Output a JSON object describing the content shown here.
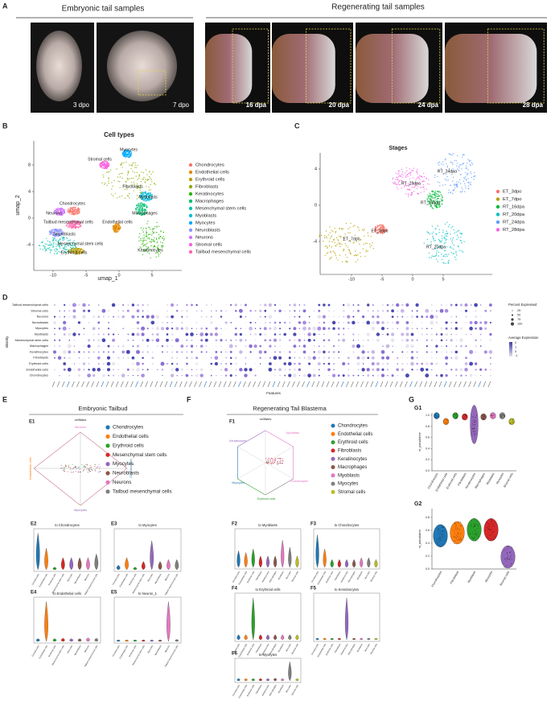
{
  "panelA": {
    "letter": "A",
    "embryonic": {
      "title": "Embryonic tail samples",
      "labels": [
        "3 dpo",
        "7 dpo"
      ]
    },
    "regenerating": {
      "title": "Regenerating tail samples",
      "labels": [
        "16 dpa",
        "20 dpa",
        "24 dpa",
        "28 dpa"
      ]
    }
  },
  "panelB": {
    "letter": "B",
    "title": "Cell types",
    "xlabel": "umap_1",
    "ylabel": "umap_2",
    "xticks": [
      "-10",
      "-5",
      "0",
      "5"
    ],
    "yticks": [
      "-4",
      "0",
      "4",
      "8"
    ],
    "legend": [
      {
        "name": "Chondrocytes",
        "color": "#F8766D"
      },
      {
        "name": "Endothelial cells",
        "color": "#E18A00"
      },
      {
        "name": "Erythroid cells",
        "color": "#BE9C00"
      },
      {
        "name": "Fibroblasts",
        "color": "#8CAB00"
      },
      {
        "name": "Keratinocytes",
        "color": "#24B700"
      },
      {
        "name": "Macrophages",
        "color": "#00BE70"
      },
      {
        "name": "Mesenchymal stem cells",
        "color": "#00C1AB"
      },
      {
        "name": "Myoblasts",
        "color": "#00BBDA"
      },
      {
        "name": "Myocytes",
        "color": "#00ACFC"
      },
      {
        "name": "Neuroblasts",
        "color": "#8B93FF"
      },
      {
        "name": "Neurons",
        "color": "#D575FE"
      },
      {
        "name": "Stromal cells",
        "color": "#F962DD"
      },
      {
        "name": "Tailbud mesenchymal cells",
        "color": "#FF65AC"
      }
    ],
    "cluster_labels": [
      "Myocytes",
      "Stromal cells",
      "Fibroblasts",
      "Myoblasts",
      "Chondrocytes",
      "Macrophages",
      "Endothelial cells",
      "Neurons",
      "Tailbud mesenchymal cells",
      "Neuroblasts",
      "Mesenchymal stem cells",
      "Erythroid cells",
      "Keratinocytes"
    ]
  },
  "panelC": {
    "letter": "C",
    "title": "Stages",
    "xticks": [
      "-10",
      "-5",
      "0",
      "5"
    ],
    "yticks": [
      "-4",
      "0",
      "4"
    ],
    "legend": [
      {
        "name": "ET_3dpo",
        "color": "#F8766D"
      },
      {
        "name": "ET_7dpo",
        "color": "#B79F00"
      },
      {
        "name": "RT_16dpa",
        "color": "#00BA38"
      },
      {
        "name": "RT_20dpa",
        "color": "#00BFC4"
      },
      {
        "name": "RT_24dpa",
        "color": "#619CFF"
      },
      {
        "name": "RT_28dpa",
        "color": "#F564E3"
      }
    ],
    "cluster_labels": [
      "RT_24dpa",
      "RT_28dpa",
      "RT_16dpa",
      "ET_3dpo",
      "ET_7dpo",
      "RT_20dpa"
    ]
  },
  "panelD": {
    "letter": "D",
    "ylabel": "Identity",
    "xlabel": "Features",
    "identities": [
      "Tailbud mesenchymal cells",
      "Stromal cells",
      "Neurons",
      "Neuroblasts",
      "Myocytes",
      "Myoblasts",
      "Mesenchymal stem cells",
      "Macrophages",
      "Keratinocytes",
      "Fibroblasts",
      "Erythroid cells",
      "Endothelial cells",
      "Chondrocytes"
    ],
    "size_legend_title": "Percent Expressed",
    "size_legend": [
      "25",
      "50",
      "75",
      "100"
    ],
    "color_legend_title": "Average Expression",
    "color_legend": [
      "2",
      "1",
      "0",
      "-1"
    ]
  },
  "panelE": {
    "letter": "E",
    "title": "Embryonic Tailbud",
    "radar": {
      "label": "E1",
      "center": "cellfates",
      "axes": [
        "Neurons",
        "Endothelial cells",
        "Chondrocytes",
        "Myocytes"
      ]
    },
    "legend": [
      {
        "name": "Chondrocytes",
        "color": "#1f77b4"
      },
      {
        "name": "Endothelial cells",
        "color": "#ff7f0e"
      },
      {
        "name": "Erythroid cells",
        "color": "#2ca02c"
      },
      {
        "name": "Mesenchymal stem cells",
        "color": "#d62728"
      },
      {
        "name": "Myocytes",
        "color": "#9467bd"
      },
      {
        "name": "Neuroblasts",
        "color": "#8c564b"
      },
      {
        "name": "Neurons",
        "color": "#e377c2"
      },
      {
        "name": "Tailbud mesenchymal cells",
        "color": "#7f7f7f"
      }
    ],
    "violins": [
      {
        "label": "E2",
        "title": "to Chondrocytes"
      },
      {
        "label": "E3",
        "title": "to Myocytes"
      },
      {
        "label": "E4",
        "title": "to Endothelial cells"
      },
      {
        "label": "E5",
        "title": "to Neuron_1"
      }
    ]
  },
  "panelF": {
    "letter": "F",
    "title": "Regenerating Tail Blastema",
    "radar": {
      "label": "F1",
      "center": "cellfates",
      "axes": [
        "Myoblasts",
        "Chondrocytes",
        "Keratinocytes",
        "Erythroid cells",
        "Myocytes"
      ]
    },
    "legend": [
      {
        "name": "Chondrocytes",
        "color": "#1f77b4"
      },
      {
        "name": "Endothelial cells",
        "color": "#ff7f0e"
      },
      {
        "name": "Erythroid cells",
        "color": "#2ca02c"
      },
      {
        "name": "Fibroblasts",
        "color": "#d62728"
      },
      {
        "name": "Keratinocytes",
        "color": "#9467bd"
      },
      {
        "name": "Macrophages",
        "color": "#8c564b"
      },
      {
        "name": "Myoblasts",
        "color": "#e377c2"
      },
      {
        "name": "Myocytes",
        "color": "#7f7f7f"
      },
      {
        "name": "Stromal cells",
        "color": "#bcbd22"
      }
    ],
    "violins": [
      {
        "label": "F2",
        "title": "to Myoblasts"
      },
      {
        "label": "F3",
        "title": "to Chondrocytes"
      },
      {
        "label": "F4",
        "title": "to Erythroid cells"
      },
      {
        "label": "F5",
        "title": "to Keratinocytes"
      },
      {
        "label": "F6",
        "title": "to Myocytes"
      }
    ]
  },
  "panelG": {
    "letter": "G",
    "plots": [
      {
        "label": "G1",
        "ylabel": "nt_pseudotime",
        "yticks": [
          "0.0",
          "0.2",
          "0.4",
          "0.6",
          "0.8",
          "1.0"
        ],
        "categories": [
          "Chondrocytes",
          "Endothelial cells",
          "Erythroid cells",
          "Fibroblasts",
          "Keratinocytes",
          "Macrophages",
          "Myoblasts",
          "Myocytes",
          "Stromal cells"
        ]
      },
      {
        "label": "G2",
        "ylabel": "nt_pseudotime",
        "yticks": [
          "0.0",
          "0.2",
          "0.4",
          "0.6",
          "0.8"
        ],
        "categories": [
          "Chondrocytes",
          "Fibroblasts",
          "Myoblasts",
          "Myocytes",
          "Stromal cells"
        ]
      }
    ]
  }
}
